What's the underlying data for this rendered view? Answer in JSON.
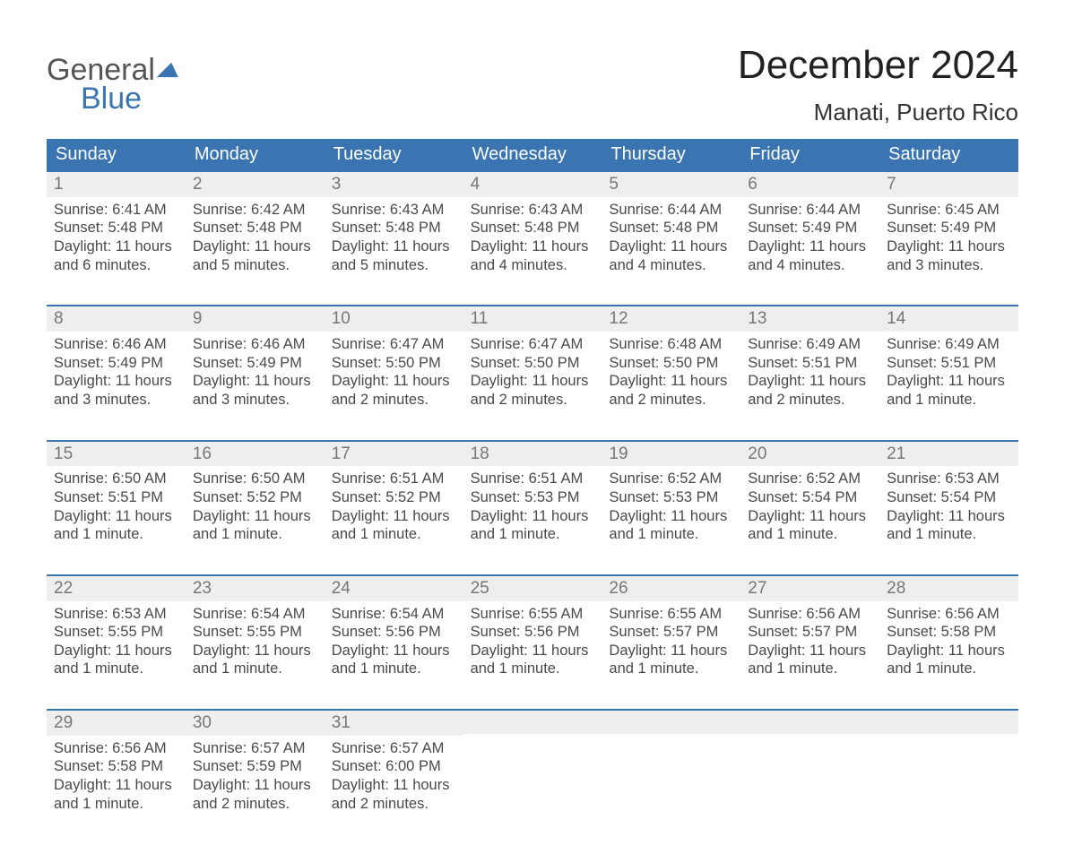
{
  "brand": {
    "line1": "General",
    "line2": "Blue"
  },
  "title": "December 2024",
  "location": "Manati, Puerto Rico",
  "colors": {
    "header_bg": "#3a75b1",
    "header_text": "#ffffff",
    "daynum_bg": "#eeeeee",
    "daynum_text": "#777777",
    "body_text": "#4a4a4a",
    "page_bg": "#ffffff",
    "rule": "#3a75b1"
  },
  "typography": {
    "title_fontsize": 44,
    "location_fontsize": 26,
    "header_fontsize": 20,
    "daynum_fontsize": 19,
    "body_fontsize": 16.5,
    "font_family": "Arial"
  },
  "dayNames": [
    "Sunday",
    "Monday",
    "Tuesday",
    "Wednesday",
    "Thursday",
    "Friday",
    "Saturday"
  ],
  "weeks": [
    [
      {
        "num": "1",
        "sunrise": "6:41 AM",
        "sunset": "5:48 PM",
        "daylight": "11 hours and 6 minutes."
      },
      {
        "num": "2",
        "sunrise": "6:42 AM",
        "sunset": "5:48 PM",
        "daylight": "11 hours and 5 minutes."
      },
      {
        "num": "3",
        "sunrise": "6:43 AM",
        "sunset": "5:48 PM",
        "daylight": "11 hours and 5 minutes."
      },
      {
        "num": "4",
        "sunrise": "6:43 AM",
        "sunset": "5:48 PM",
        "daylight": "11 hours and 4 minutes."
      },
      {
        "num": "5",
        "sunrise": "6:44 AM",
        "sunset": "5:48 PM",
        "daylight": "11 hours and 4 minutes."
      },
      {
        "num": "6",
        "sunrise": "6:44 AM",
        "sunset": "5:49 PM",
        "daylight": "11 hours and 4 minutes."
      },
      {
        "num": "7",
        "sunrise": "6:45 AM",
        "sunset": "5:49 PM",
        "daylight": "11 hours and 3 minutes."
      }
    ],
    [
      {
        "num": "8",
        "sunrise": "6:46 AM",
        "sunset": "5:49 PM",
        "daylight": "11 hours and 3 minutes."
      },
      {
        "num": "9",
        "sunrise": "6:46 AM",
        "sunset": "5:49 PM",
        "daylight": "11 hours and 3 minutes."
      },
      {
        "num": "10",
        "sunrise": "6:47 AM",
        "sunset": "5:50 PM",
        "daylight": "11 hours and 2 minutes."
      },
      {
        "num": "11",
        "sunrise": "6:47 AM",
        "sunset": "5:50 PM",
        "daylight": "11 hours and 2 minutes."
      },
      {
        "num": "12",
        "sunrise": "6:48 AM",
        "sunset": "5:50 PM",
        "daylight": "11 hours and 2 minutes."
      },
      {
        "num": "13",
        "sunrise": "6:49 AM",
        "sunset": "5:51 PM",
        "daylight": "11 hours and 2 minutes."
      },
      {
        "num": "14",
        "sunrise": "6:49 AM",
        "sunset": "5:51 PM",
        "daylight": "11 hours and 1 minute."
      }
    ],
    [
      {
        "num": "15",
        "sunrise": "6:50 AM",
        "sunset": "5:51 PM",
        "daylight": "11 hours and 1 minute."
      },
      {
        "num": "16",
        "sunrise": "6:50 AM",
        "sunset": "5:52 PM",
        "daylight": "11 hours and 1 minute."
      },
      {
        "num": "17",
        "sunrise": "6:51 AM",
        "sunset": "5:52 PM",
        "daylight": "11 hours and 1 minute."
      },
      {
        "num": "18",
        "sunrise": "6:51 AM",
        "sunset": "5:53 PM",
        "daylight": "11 hours and 1 minute."
      },
      {
        "num": "19",
        "sunrise": "6:52 AM",
        "sunset": "5:53 PM",
        "daylight": "11 hours and 1 minute."
      },
      {
        "num": "20",
        "sunrise": "6:52 AM",
        "sunset": "5:54 PM",
        "daylight": "11 hours and 1 minute."
      },
      {
        "num": "21",
        "sunrise": "6:53 AM",
        "sunset": "5:54 PM",
        "daylight": "11 hours and 1 minute."
      }
    ],
    [
      {
        "num": "22",
        "sunrise": "6:53 AM",
        "sunset": "5:55 PM",
        "daylight": "11 hours and 1 minute."
      },
      {
        "num": "23",
        "sunrise": "6:54 AM",
        "sunset": "5:55 PM",
        "daylight": "11 hours and 1 minute."
      },
      {
        "num": "24",
        "sunrise": "6:54 AM",
        "sunset": "5:56 PM",
        "daylight": "11 hours and 1 minute."
      },
      {
        "num": "25",
        "sunrise": "6:55 AM",
        "sunset": "5:56 PM",
        "daylight": "11 hours and 1 minute."
      },
      {
        "num": "26",
        "sunrise": "6:55 AM",
        "sunset": "5:57 PM",
        "daylight": "11 hours and 1 minute."
      },
      {
        "num": "27",
        "sunrise": "6:56 AM",
        "sunset": "5:57 PM",
        "daylight": "11 hours and 1 minute."
      },
      {
        "num": "28",
        "sunrise": "6:56 AM",
        "sunset": "5:58 PM",
        "daylight": "11 hours and 1 minute."
      }
    ],
    [
      {
        "num": "29",
        "sunrise": "6:56 AM",
        "sunset": "5:58 PM",
        "daylight": "11 hours and 1 minute."
      },
      {
        "num": "30",
        "sunrise": "6:57 AM",
        "sunset": "5:59 PM",
        "daylight": "11 hours and 2 minutes."
      },
      {
        "num": "31",
        "sunrise": "6:57 AM",
        "sunset": "6:00 PM",
        "daylight": "11 hours and 2 minutes."
      },
      null,
      null,
      null,
      null
    ]
  ],
  "labels": {
    "sunrise": "Sunrise:",
    "sunset": "Sunset:",
    "daylight": "Daylight:"
  }
}
